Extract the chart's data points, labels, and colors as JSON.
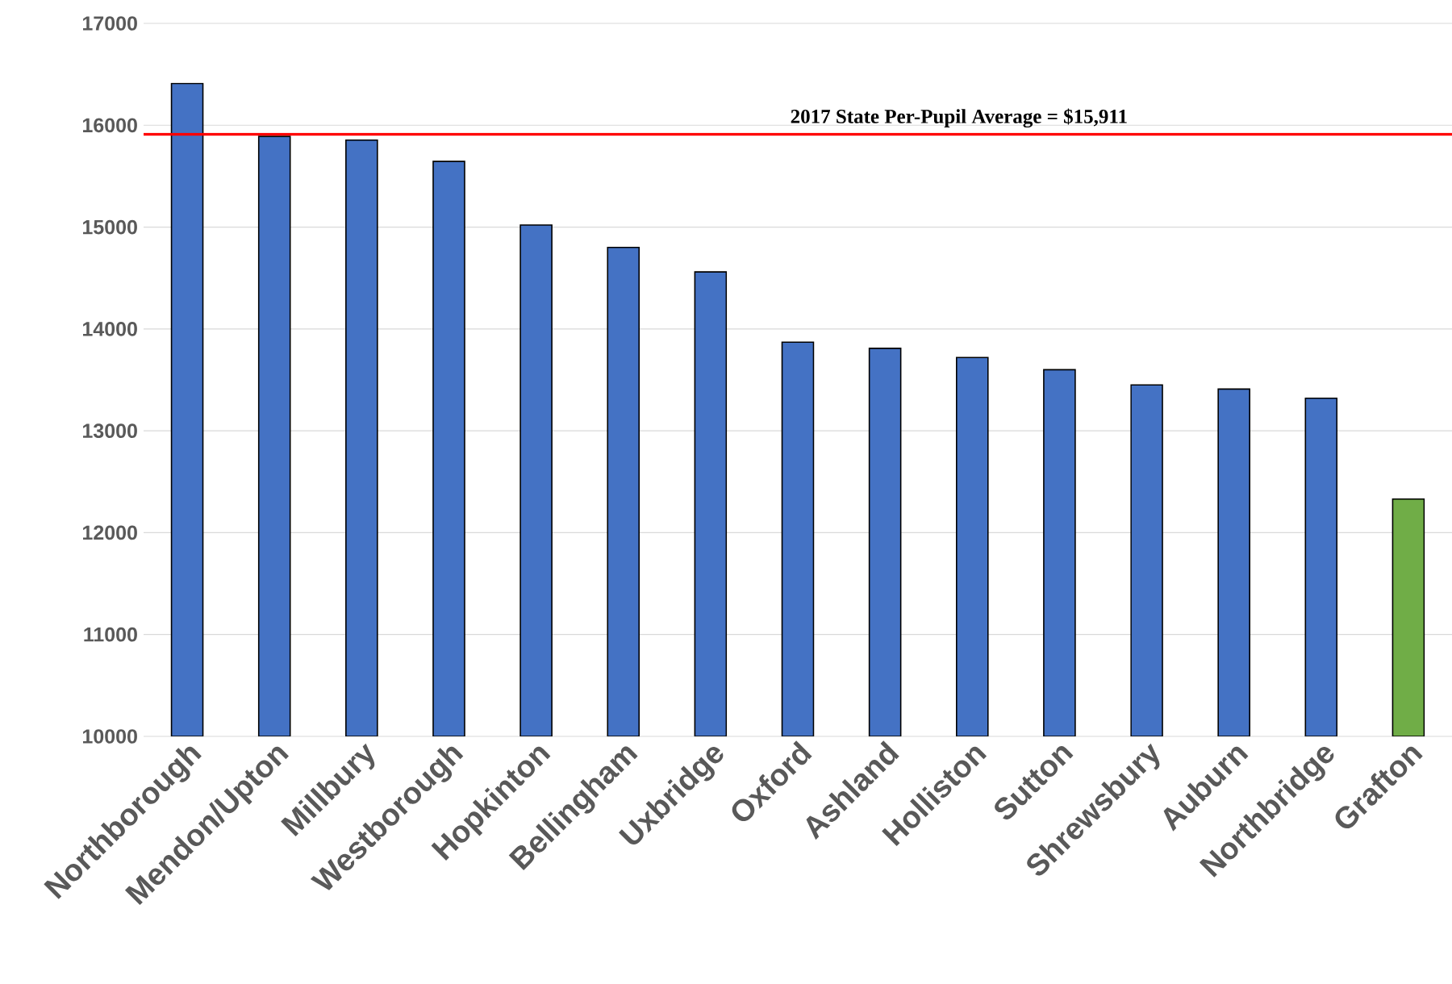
{
  "chart_data": {
    "type": "bar",
    "categories": [
      "Northborough",
      "Mendon/Upton",
      "Millbury",
      "Westborough",
      "Hopkinton",
      "Bellingham",
      "Uxbridge",
      "Oxford",
      "Ashland",
      "Holliston",
      "Sutton",
      "Shrewsbury",
      "Auburn",
      "Northbridge",
      "Grafton"
    ],
    "values": [
      16410,
      15890,
      15855,
      15645,
      15020,
      14800,
      14560,
      13870,
      13810,
      13720,
      13600,
      13450,
      13410,
      13320,
      12330
    ],
    "colors": [
      "#4472c4",
      "#4472c4",
      "#4472c4",
      "#4472c4",
      "#4472c4",
      "#4472c4",
      "#4472c4",
      "#4472c4",
      "#4472c4",
      "#4472c4",
      "#4472c4",
      "#4472c4",
      "#4472c4",
      "#4472c4",
      "#70ad47"
    ],
    "ylim": [
      10000,
      17000
    ],
    "yticks": [
      10000,
      11000,
      12000,
      13000,
      14000,
      15000,
      16000,
      17000
    ],
    "grid": "y",
    "ref_lines": [
      {
        "axis": "y",
        "value": 15911,
        "label": "2017 State Per-Pupil Average = $15,911",
        "color": "#ff0000"
      }
    ]
  }
}
